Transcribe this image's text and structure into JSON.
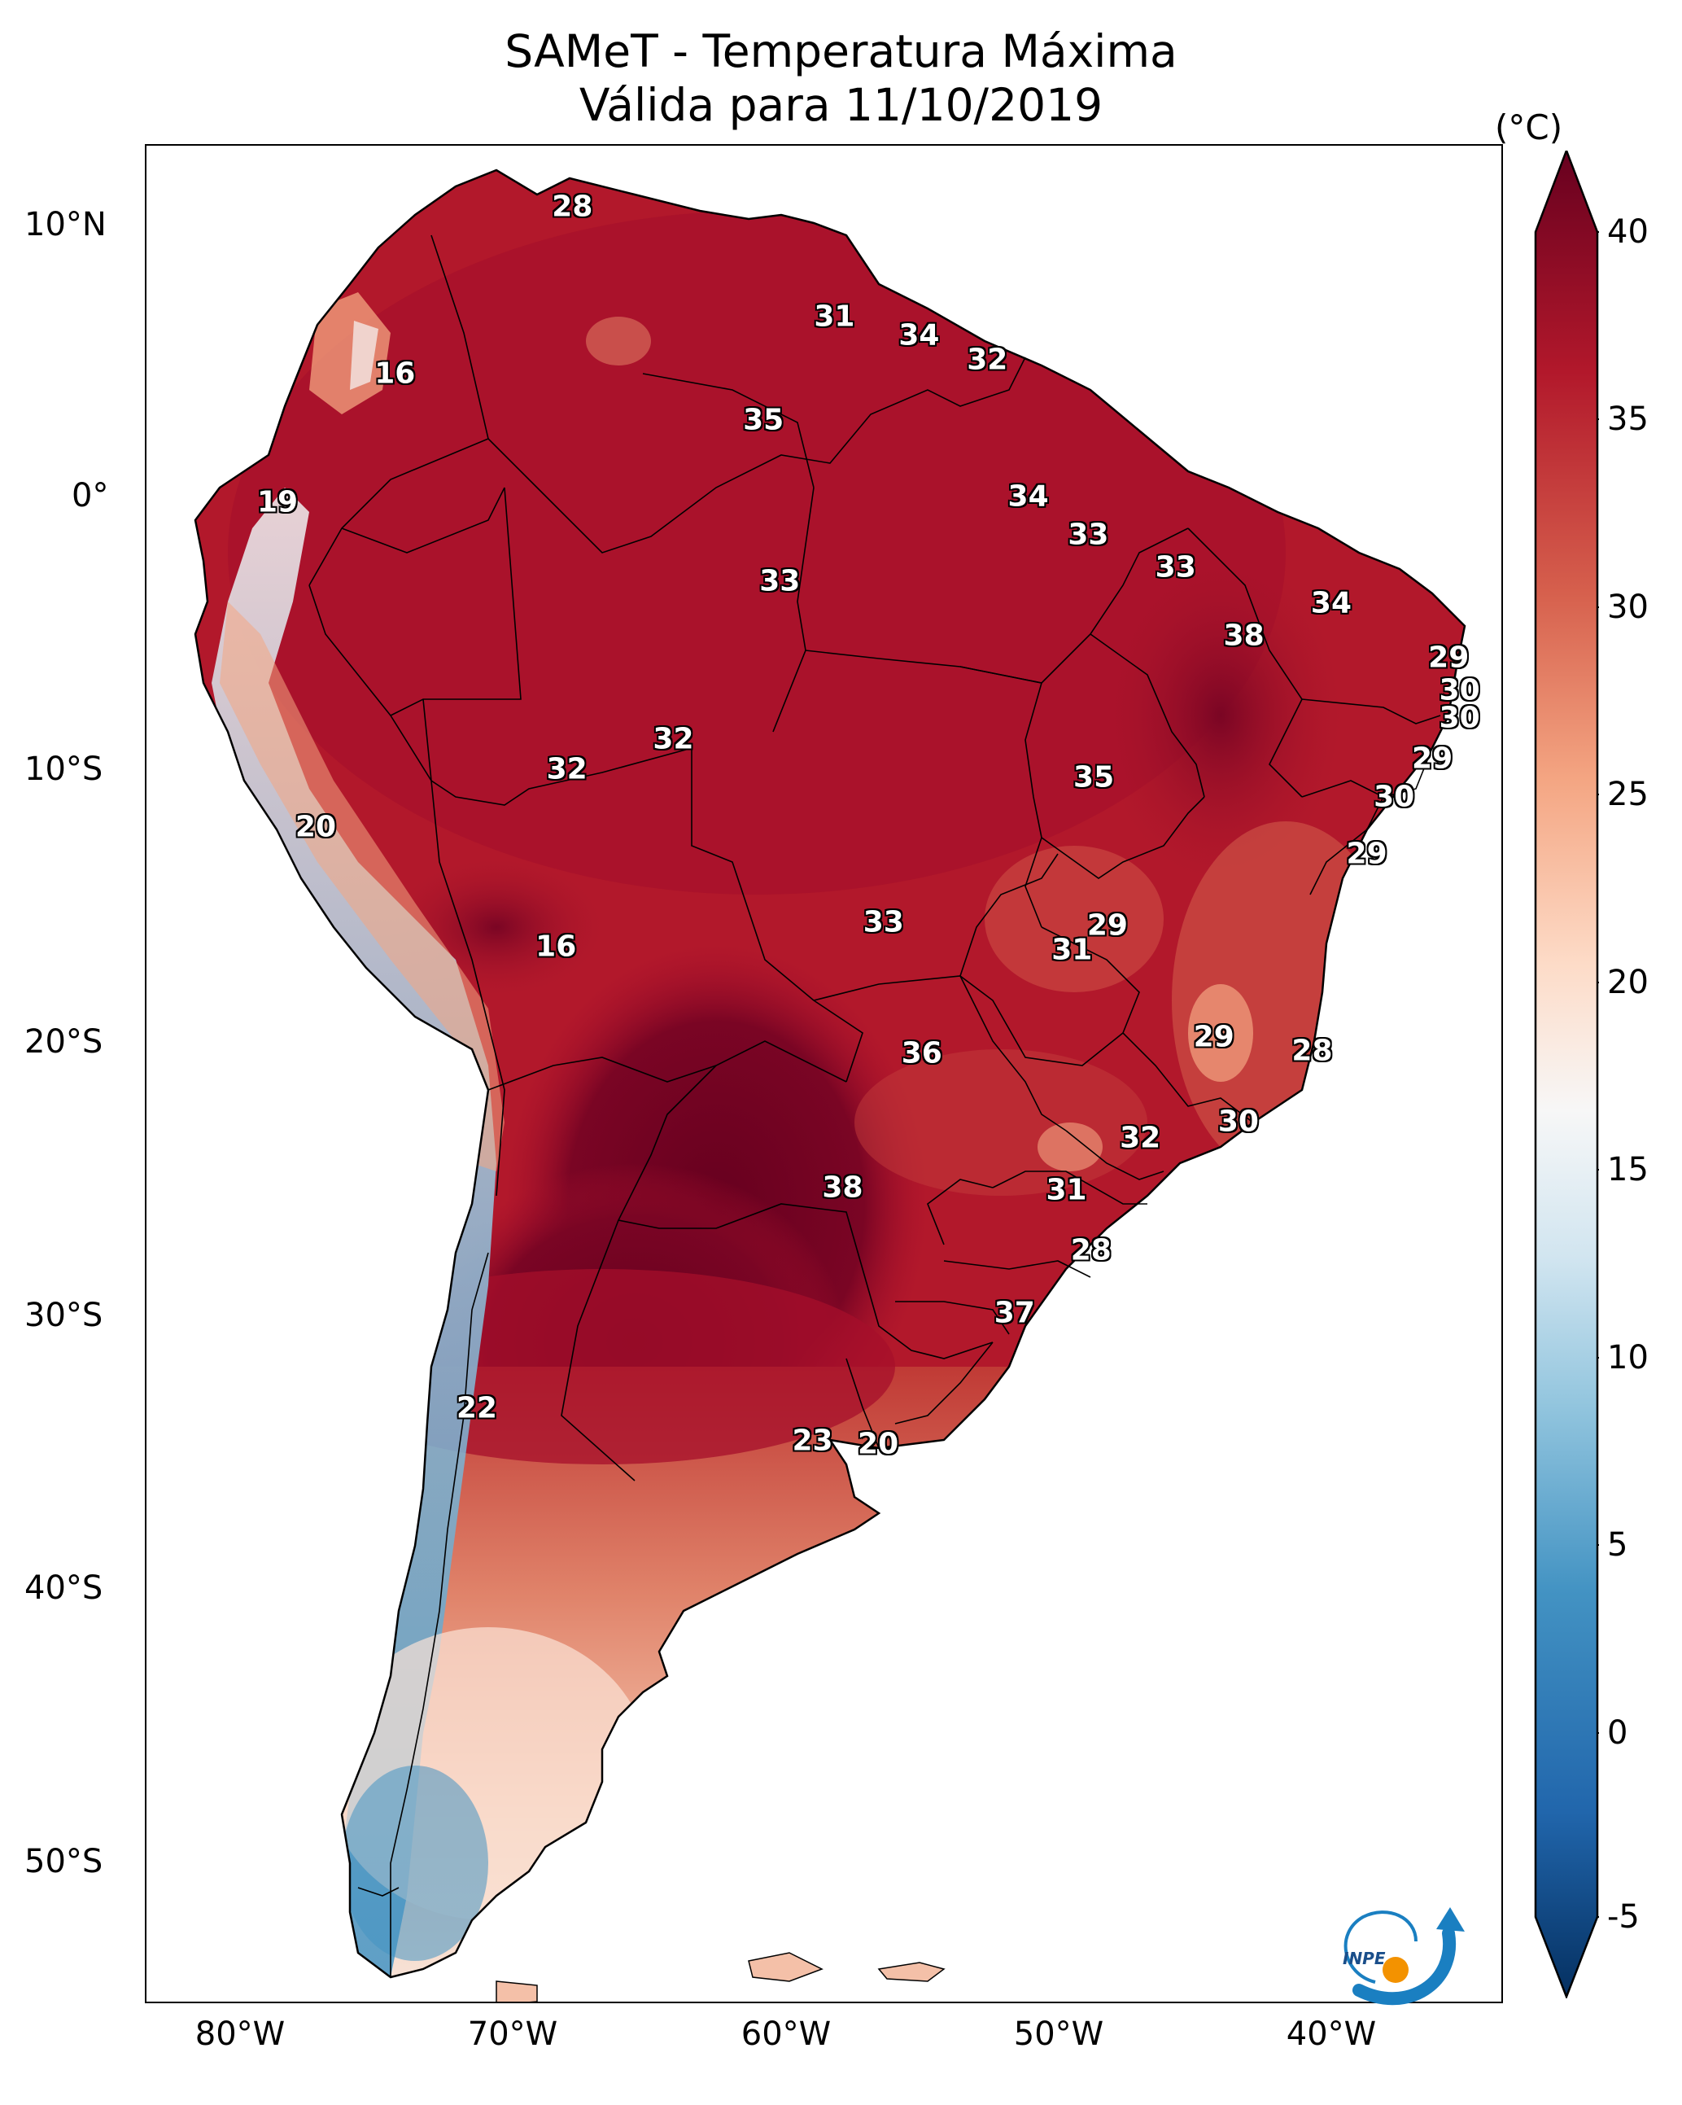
{
  "title": {
    "line1": "SAMeT - Temperatura Máxima",
    "line2": "Válida para 11/10/2019"
  },
  "axes": {
    "lat_ticks": [
      "10°N",
      "0°",
      "10°S",
      "20°S",
      "30°S",
      "40°S",
      "50°S"
    ],
    "lon_ticks": [
      "80°W",
      "70°W",
      "60°W",
      "50°W",
      "40°W"
    ]
  },
  "colorbar": {
    "unit": "(°C)",
    "ticks": [
      "40",
      "35",
      "30",
      "25",
      "20",
      "15",
      "10",
      "5",
      "0",
      "-5"
    ],
    "range": [
      -7,
      40
    ],
    "colors": [
      "#053061",
      "#2166ac",
      "#4393c3",
      "#92c5de",
      "#d1e5f0",
      "#f7f7f7",
      "#fddbc7",
      "#f4a582",
      "#d6604d",
      "#b2182b",
      "#67001f"
    ]
  },
  "contour_labels": [
    {
      "text": "28",
      "lon": -67.4,
      "lat": 10.6
    },
    {
      "text": "16",
      "lon": -73.9,
      "lat": 4.5
    },
    {
      "text": "31",
      "lon": -57.8,
      "lat": 6.6
    },
    {
      "text": "34",
      "lon": -54.7,
      "lat": 5.9
    },
    {
      "text": "32",
      "lon": -52.2,
      "lat": 5.0
    },
    {
      "text": "35",
      "lon": -60.4,
      "lat": 2.8
    },
    {
      "text": "19",
      "lon": -78.2,
      "lat": -0.2
    },
    {
      "text": "34",
      "lon": -50.7,
      "lat": 0.0
    },
    {
      "text": "33",
      "lon": -48.5,
      "lat": -1.4
    },
    {
      "text": "33",
      "lon": -59.8,
      "lat": -3.1
    },
    {
      "text": "33",
      "lon": -45.3,
      "lat": -2.6
    },
    {
      "text": "34",
      "lon": -39.6,
      "lat": -3.9
    },
    {
      "text": "38",
      "lon": -42.8,
      "lat": -5.1
    },
    {
      "text": "29",
      "lon": -35.3,
      "lat": -5.9
    },
    {
      "text": "30",
      "lon": -34.9,
      "lat": -7.1
    },
    {
      "text": "30",
      "lon": -34.9,
      "lat": -8.1
    },
    {
      "text": "32",
      "lon": -63.7,
      "lat": -8.9
    },
    {
      "text": "32",
      "lon": -67.6,
      "lat": -10.0
    },
    {
      "text": "35",
      "lon": -48.3,
      "lat": -10.3
    },
    {
      "text": "29",
      "lon": -35.9,
      "lat": -9.6
    },
    {
      "text": "30",
      "lon": -37.3,
      "lat": -11.0
    },
    {
      "text": "20",
      "lon": -76.8,
      "lat": -12.1
    },
    {
      "text": "29",
      "lon": -38.3,
      "lat": -13.1
    },
    {
      "text": "33",
      "lon": -56.0,
      "lat": -15.6
    },
    {
      "text": "29",
      "lon": -47.8,
      "lat": -15.7
    },
    {
      "text": "31",
      "lon": -49.1,
      "lat": -16.6
    },
    {
      "text": "16",
      "lon": -68.0,
      "lat": -16.5
    },
    {
      "text": "29",
      "lon": -43.9,
      "lat": -19.8
    },
    {
      "text": "28",
      "lon": -40.3,
      "lat": -20.3
    },
    {
      "text": "36",
      "lon": -54.6,
      "lat": -20.4
    },
    {
      "text": "30",
      "lon": -43.0,
      "lat": -22.9
    },
    {
      "text": "32",
      "lon": -46.6,
      "lat": -23.5
    },
    {
      "text": "38",
      "lon": -57.5,
      "lat": -25.3
    },
    {
      "text": "31",
      "lon": -49.3,
      "lat": -25.4
    },
    {
      "text": "28",
      "lon": -48.4,
      "lat": -27.6
    },
    {
      "text": "37",
      "lon": -51.2,
      "lat": -29.9
    },
    {
      "text": "22",
      "lon": -70.9,
      "lat": -33.4
    },
    {
      "text": "23",
      "lon": -58.6,
      "lat": -34.6
    },
    {
      "text": "20",
      "lon": -56.2,
      "lat": -34.7
    }
  ],
  "logo": {
    "text": "INPE"
  }
}
